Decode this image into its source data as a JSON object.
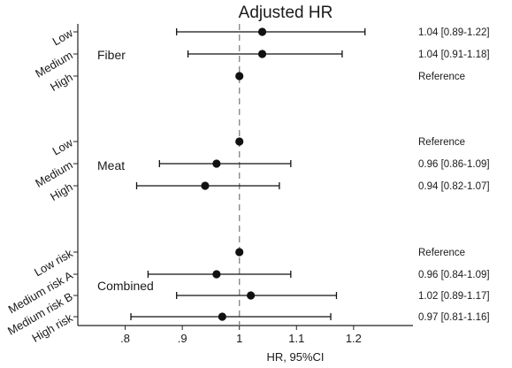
{
  "chart_data": {
    "type": "forest",
    "title": "Adjusted HR",
    "xlabel": "HR, 95%CI",
    "xlim": [
      0.8,
      1.22
    ],
    "x_ticks": [
      {
        "value": 0.8,
        "label": ".8"
      },
      {
        "value": 0.9,
        "label": ".9"
      },
      {
        "value": 1.0,
        "label": "1"
      },
      {
        "value": 1.1,
        "label": "1.1"
      },
      {
        "value": 1.2,
        "label": "1.2"
      }
    ],
    "reference_line": 1.0,
    "groups": [
      {
        "name": "Fiber",
        "rows": [
          {
            "label": "Low",
            "hr": 1.04,
            "lo": 0.89,
            "hi": 1.22,
            "annotation": "1.04 [0.89-1.22]"
          },
          {
            "label": "Medium",
            "hr": 1.04,
            "lo": 0.91,
            "hi": 1.18,
            "annotation": "1.04 [0.91-1.18]"
          },
          {
            "label": "High",
            "hr": 1.0,
            "lo": null,
            "hi": null,
            "annotation": "Reference"
          }
        ]
      },
      {
        "name": "Meat",
        "rows": [
          {
            "label": "Low",
            "hr": 1.0,
            "lo": null,
            "hi": null,
            "annotation": "Reference"
          },
          {
            "label": "Medium",
            "hr": 0.96,
            "lo": 0.86,
            "hi": 1.09,
            "annotation": "0.96 [0.86-1.09]"
          },
          {
            "label": "High",
            "hr": 0.94,
            "lo": 0.82,
            "hi": 1.07,
            "annotation": "0.94 [0.82-1.07]"
          }
        ]
      },
      {
        "name": "Combined",
        "rows": [
          {
            "label": "Low risk",
            "hr": 1.0,
            "lo": null,
            "hi": null,
            "annotation": "Reference"
          },
          {
            "label": "Medium risk A",
            "hr": 0.96,
            "lo": 0.84,
            "hi": 1.09,
            "annotation": "0.96 [0.84-1.09]"
          },
          {
            "label": "Medium risk B",
            "hr": 1.02,
            "lo": 0.89,
            "hi": 1.17,
            "annotation": "1.02 [0.89-1.17]"
          },
          {
            "label": "High risk",
            "hr": 0.97,
            "lo": 0.81,
            "hi": 1.16,
            "annotation": "0.97 [0.81-1.16]"
          }
        ]
      }
    ],
    "grid": false,
    "colors": {
      "marker": "#111111",
      "axis": "#222222",
      "reference": "#8a8a8a"
    }
  }
}
